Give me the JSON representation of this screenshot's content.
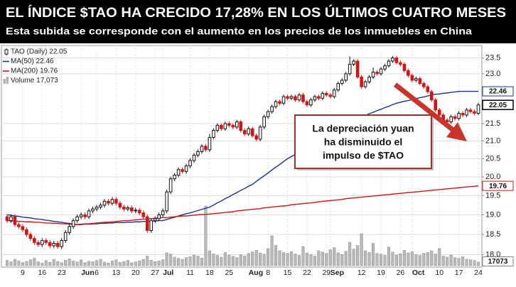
{
  "chart_data": {
    "type": "candlestick",
    "title": "EL ÍNDICE $TAO HA CRECIDO 17,28% EN LOS ÚLTIMOS CUATRO MESES",
    "subtitle": "Esta subida se corresponde con el aumento en los precios de los inmuebles en China",
    "annotation": {
      "lines": [
        "La depreciación yuan",
        "ha disminuido el",
        "impulso de $TAO"
      ]
    },
    "log_scale": true,
    "grid": true,
    "ylim": [
      17.7,
      23.9
    ],
    "yticks": [
      {
        "value": 18,
        "label": "18.0"
      },
      18.5,
      {
        "value": 19,
        "label": "19.0"
      },
      19.5,
      {
        "value": 20,
        "label": "20.0"
      },
      20.5,
      {
        "value": 21,
        "label": "21.0"
      },
      21.5,
      {
        "value": 23,
        "label": "23.0"
      },
      23.5
    ],
    "categories": [
      null,
      null,
      null,
      null,
      "9",
      null,
      null,
      null,
      null,
      "16",
      null,
      null,
      null,
      null,
      "23",
      null,
      null,
      null,
      null,
      "Jun",
      null,
      null,
      null,
      "6",
      null,
      null,
      null,
      null,
      "13",
      null,
      null,
      null,
      null,
      "20",
      null,
      null,
      null,
      null,
      "27",
      null,
      "Jul",
      null,
      null,
      null,
      null,
      null,
      null,
      "11",
      null,
      null,
      null,
      null,
      "18",
      null,
      null,
      null,
      null,
      "25",
      null,
      null,
      null,
      null,
      "Aug",
      null,
      null,
      null,
      null,
      "8",
      null,
      null,
      null,
      null,
      "15",
      null,
      null,
      null,
      null,
      "22",
      null,
      null,
      null,
      null,
      "29",
      "Sep",
      null,
      null,
      null,
      null,
      null,
      null,
      null,
      "12",
      null,
      null,
      null,
      null,
      "19",
      null,
      null,
      null,
      null,
      "26",
      null,
      null,
      "Oct",
      null,
      null,
      null,
      null,
      null,
      null,
      "10",
      null,
      null,
      null,
      null,
      "17",
      null,
      null,
      null,
      null,
      "24"
    ],
    "series": [
      {
        "name": "TAO (Daily) 22.05",
        "type": "candlestick",
        "color": "#111111",
        "down_color": "#d31414",
        "open": [
          18.95,
          18.85,
          18.95,
          18.75,
          18.7,
          18.62,
          18.5,
          18.4,
          18.3,
          18.25,
          18.35,
          18.3,
          18.22,
          18.28,
          18.2,
          18.35,
          18.55,
          18.7,
          18.85,
          18.95,
          19.0,
          18.95,
          19.1,
          19.15,
          19.2,
          19.25,
          19.35,
          19.3,
          19.4,
          19.3,
          19.2,
          19.15,
          19.18,
          19.1,
          19.12,
          19.05,
          18.95,
          18.6,
          18.85,
          18.9,
          19.0,
          19.1,
          19.6,
          19.95,
          20.05,
          20.2,
          20.15,
          20.3,
          20.45,
          20.6,
          20.7,
          20.85,
          20.75,
          21.1,
          21.3,
          21.45,
          21.35,
          21.5,
          21.45,
          21.4,
          21.55,
          21.3,
          21.2,
          21.35,
          21.15,
          21.05,
          21.4,
          21.7,
          21.85,
          22.0,
          22.15,
          22.1,
          22.3,
          22.25,
          22.3,
          22.2,
          22.35,
          22.15,
          22.05,
          22.2,
          22.3,
          22.25,
          22.4,
          22.35,
          22.3,
          22.5,
          22.7,
          22.8,
          23.0,
          23.3,
          23.4,
          22.9,
          22.6,
          22.75,
          22.9,
          23.05,
          23.0,
          23.15,
          23.25,
          23.4,
          23.5,
          23.35,
          23.3,
          23.1,
          22.95,
          22.8,
          22.85,
          22.7,
          22.6,
          22.45,
          22.2,
          21.9,
          21.75,
          21.6,
          21.55,
          21.7,
          21.65,
          21.8,
          21.75,
          21.9,
          21.85,
          21.8
        ],
        "high": [
          19.01,
          19.01,
          19.01,
          18.81,
          18.76,
          18.68,
          18.56,
          18.46,
          18.36,
          18.41,
          18.41,
          18.36,
          18.34,
          18.34,
          18.41,
          18.61,
          18.76,
          18.91,
          19.01,
          19.06,
          19.06,
          19.16,
          19.21,
          19.26,
          19.31,
          19.41,
          19.41,
          19.46,
          19.46,
          19.36,
          19.26,
          19.24,
          19.24,
          19.18,
          19.18,
          19.11,
          19.01,
          18.91,
          18.96,
          19.06,
          19.16,
          19.66,
          20.01,
          20.11,
          20.26,
          20.26,
          20.36,
          20.51,
          20.66,
          20.76,
          20.91,
          20.91,
          21.2,
          21.36,
          21.51,
          21.51,
          21.56,
          21.56,
          21.51,
          21.61,
          21.61,
          21.36,
          21.41,
          21.41,
          21.21,
          21.46,
          21.76,
          21.91,
          22.06,
          22.21,
          22.21,
          22.36,
          22.36,
          22.36,
          22.36,
          22.41,
          22.41,
          22.21,
          22.26,
          22.36,
          22.36,
          22.46,
          22.46,
          22.41,
          22.56,
          22.76,
          22.86,
          23.06,
          23.55,
          23.46,
          23.46,
          22.96,
          22.81,
          22.96,
          23.2,
          23.11,
          23.21,
          23.31,
          23.46,
          23.56,
          23.56,
          23.41,
          23.36,
          23.16,
          23.01,
          22.91,
          22.91,
          22.76,
          22.66,
          22.51,
          22.26,
          21.96,
          21.81,
          21.66,
          21.76,
          21.76,
          21.86,
          21.86,
          21.96,
          21.96,
          21.91,
          22.11
        ],
        "low": [
          18.79,
          18.79,
          18.69,
          18.64,
          18.56,
          18.44,
          18.34,
          18.24,
          18.19,
          18.19,
          18.24,
          18.16,
          18.16,
          18.14,
          18.14,
          18.29,
          18.49,
          18.64,
          18.79,
          18.89,
          18.89,
          18.89,
          19.04,
          19.09,
          19.14,
          19.19,
          19.24,
          19.24,
          19.24,
          19.14,
          19.09,
          19.09,
          19.04,
          19.04,
          18.99,
          18.89,
          18.54,
          18.54,
          18.79,
          18.84,
          18.94,
          19.04,
          19.54,
          19.89,
          19.99,
          20.09,
          20.09,
          20.24,
          20.39,
          20.54,
          20.64,
          20.69,
          20.69,
          21.04,
          21.24,
          21.29,
          21.29,
          21.39,
          21.34,
          21.34,
          21.24,
          21.14,
          21.14,
          21.09,
          20.99,
          20.99,
          21.34,
          21.64,
          21.79,
          21.94,
          22.04,
          22.04,
          22.19,
          22.19,
          22.14,
          22.14,
          22.09,
          21.99,
          21.99,
          22.14,
          22.19,
          22.19,
          22.29,
          22.24,
          22.24,
          22.44,
          22.64,
          22.74,
          22.94,
          23.24,
          22.84,
          22.54,
          22.54,
          22.69,
          22.84,
          22.94,
          22.94,
          23.09,
          23.19,
          23.34,
          23.29,
          23.24,
          23.04,
          22.89,
          22.74,
          22.74,
          22.64,
          22.54,
          22.39,
          22.14,
          21.84,
          21.69,
          21.54,
          21.49,
          21.49,
          21.59,
          21.59,
          21.69,
          21.69,
          21.79,
          21.74,
          21.74
        ],
        "close": [
          18.85,
          18.95,
          18.75,
          18.7,
          18.62,
          18.5,
          18.4,
          18.3,
          18.25,
          18.35,
          18.3,
          18.22,
          18.28,
          18.2,
          18.35,
          18.55,
          18.7,
          18.85,
          18.95,
          19.0,
          18.95,
          19.1,
          19.15,
          19.2,
          19.25,
          19.35,
          19.3,
          19.4,
          19.3,
          19.2,
          19.15,
          19.18,
          19.1,
          19.12,
          19.05,
          18.95,
          18.6,
          18.85,
          18.9,
          19.0,
          19.1,
          19.6,
          19.95,
          20.05,
          20.2,
          20.15,
          20.3,
          20.45,
          20.6,
          20.7,
          20.85,
          20.75,
          21.1,
          21.3,
          21.45,
          21.35,
          21.5,
          21.45,
          21.4,
          21.55,
          21.3,
          21.2,
          21.35,
          21.15,
          21.05,
          21.4,
          21.7,
          21.85,
          22.0,
          22.15,
          22.1,
          22.3,
          22.25,
          22.3,
          22.2,
          22.35,
          22.15,
          22.05,
          22.2,
          22.3,
          22.25,
          22.4,
          22.35,
          22.3,
          22.5,
          22.7,
          22.8,
          23.0,
          23.3,
          23.4,
          22.9,
          22.6,
          22.75,
          22.9,
          23.05,
          23.0,
          23.15,
          23.25,
          23.4,
          23.5,
          23.35,
          23.3,
          23.1,
          22.95,
          22.8,
          22.85,
          22.7,
          22.6,
          22.45,
          22.2,
          21.9,
          21.75,
          21.6,
          21.55,
          21.7,
          21.65,
          21.8,
          21.75,
          21.9,
          21.85,
          21.8,
          22.05
        ]
      },
      {
        "name": "MA(50) 22.46",
        "type": "line",
        "color": "#1b2f8f",
        "values": [
          19.0,
          18.99,
          18.97,
          18.96,
          18.94,
          18.93,
          18.92,
          18.9,
          18.89,
          18.88,
          18.86,
          18.85,
          18.83,
          18.82,
          18.81,
          18.79,
          18.78,
          18.76,
          18.75,
          18.75,
          18.76,
          18.76,
          18.77,
          18.77,
          18.78,
          18.78,
          18.79,
          18.79,
          18.8,
          18.8,
          18.8,
          18.81,
          18.81,
          18.82,
          18.82,
          18.83,
          18.83,
          18.84,
          18.84,
          18.85,
          18.85,
          18.88,
          18.91,
          18.94,
          18.97,
          19.0,
          19.03,
          19.05,
          19.08,
          19.11,
          19.14,
          19.17,
          19.2,
          19.25,
          19.31,
          19.36,
          19.42,
          19.47,
          19.53,
          19.58,
          19.64,
          19.69,
          19.75,
          19.8,
          19.88,
          19.96,
          20.03,
          20.11,
          20.19,
          20.27,
          20.34,
          20.42,
          20.5,
          20.56,
          20.62,
          20.68,
          20.74,
          20.8,
          20.86,
          20.92,
          20.98,
          21.04,
          21.1,
          21.17,
          21.23,
          21.3,
          21.37,
          21.43,
          21.5,
          21.57,
          21.63,
          21.7,
          21.74,
          21.79,
          21.83,
          21.88,
          21.92,
          21.97,
          22.01,
          22.06,
          22.1,
          22.13,
          22.16,
          22.18,
          22.21,
          22.24,
          22.27,
          22.29,
          22.32,
          22.35,
          22.37,
          22.38,
          22.4,
          22.41,
          22.43,
          22.44,
          22.46,
          22.46,
          22.46,
          22.46,
          22.46,
          22.46
        ]
      },
      {
        "name": "MA(200) 19.76",
        "type": "line",
        "color": "#d31414",
        "values": [
          18.85,
          18.84,
          18.84,
          18.83,
          18.83,
          18.82,
          18.82,
          18.81,
          18.81,
          18.8,
          18.79,
          18.79,
          18.78,
          18.78,
          18.77,
          18.77,
          18.76,
          18.76,
          18.75,
          18.76,
          18.77,
          18.77,
          18.78,
          18.79,
          18.8,
          18.81,
          18.81,
          18.82,
          18.83,
          18.84,
          18.85,
          18.85,
          18.86,
          18.87,
          18.88,
          18.89,
          18.89,
          18.9,
          18.91,
          18.92,
          18.93,
          18.93,
          18.94,
          18.95,
          18.96,
          18.97,
          18.97,
          18.98,
          18.99,
          19.0,
          19.01,
          19.01,
          19.02,
          19.03,
          19.04,
          19.05,
          19.06,
          19.07,
          19.08,
          19.1,
          19.11,
          19.12,
          19.13,
          19.14,
          19.15,
          19.16,
          19.18,
          19.19,
          19.2,
          19.21,
          19.22,
          19.23,
          19.24,
          19.26,
          19.27,
          19.28,
          19.29,
          19.3,
          19.31,
          19.32,
          19.34,
          19.35,
          19.36,
          19.37,
          19.38,
          19.39,
          19.4,
          19.42,
          19.43,
          19.44,
          19.45,
          19.46,
          19.47,
          19.48,
          19.49,
          19.5,
          19.51,
          19.52,
          19.53,
          19.54,
          19.55,
          19.56,
          19.57,
          19.58,
          19.59,
          19.6,
          19.61,
          19.62,
          19.63,
          19.64,
          19.65,
          19.66,
          19.67,
          19.68,
          19.69,
          19.7,
          19.71,
          19.72,
          19.73,
          19.74,
          19.75,
          19.76
        ]
      },
      {
        "name": "Volume 17,073",
        "type": "volume",
        "color": "#b9b9b9",
        "values": [
          25000,
          18000,
          30000,
          22000,
          15000,
          20000,
          28000,
          35000,
          18000,
          12000,
          24000,
          16000,
          30000,
          20000,
          14000,
          26000,
          32000,
          22000,
          18000,
          27000,
          15000,
          21000,
          19000,
          24000,
          30000,
          17000,
          13000,
          22000,
          28000,
          16000,
          20000,
          25000,
          14000,
          18000,
          23000,
          30000,
          45000,
          26000,
          19000,
          22000,
          28000,
          60000,
          55000,
          40000,
          35000,
          30000,
          38000,
          42000,
          50000,
          45000,
          36000,
          280000,
          70000,
          55000,
          48000,
          40000,
          62000,
          50000,
          44000,
          38000,
          52000,
          46000,
          58000,
          65000,
          72000,
          60000,
          54000,
          80000,
          140000,
          95000,
          70000,
          62000,
          58000,
          66000,
          55000,
          48000,
          90000,
          60000,
          52000,
          45000,
          70000,
          64000,
          58000,
          75000,
          85000,
          60000,
          52000,
          68000,
          110000,
          78000,
          95000,
          150000,
          70000,
          62000,
          105000,
          58000,
          54000,
          48000,
          88000,
          64000,
          50000,
          56000,
          72000,
          60000,
          66000,
          52000,
          48000,
          58000,
          62000,
          70000,
          55000,
          80000,
          45000,
          40000,
          50000,
          38000,
          35000,
          42000,
          30000,
          28000,
          25000,
          17073
        ]
      }
    ]
  }
}
